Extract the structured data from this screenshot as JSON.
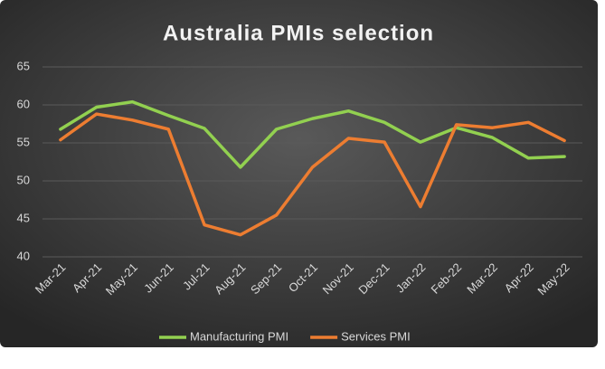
{
  "chart_data": {
    "type": "line",
    "title": "Australia PMIs selection",
    "categories": [
      "Mar-21",
      "Apr-21",
      "May-21",
      "Jun-21",
      "Jul-21",
      "Aug-21",
      "Sep-21",
      "Oct-21",
      "Nov-21",
      "Dec-21",
      "Jan-22",
      "Feb-22",
      "Mar-22",
      "Apr-22",
      "May-22"
    ],
    "series": [
      {
        "name": "Manufacturing PMI",
        "color": "#92d050",
        "values": [
          56.8,
          59.7,
          60.4,
          58.6,
          56.9,
          51.8,
          56.8,
          58.2,
          59.2,
          57.7,
          55.1,
          57.0,
          55.7,
          53.0,
          53.2
        ]
      },
      {
        "name": "Services PMI",
        "color": "#ed7d31",
        "values": [
          55.4,
          58.8,
          58.0,
          56.8,
          44.2,
          42.9,
          45.5,
          51.8,
          55.6,
          55.1,
          46.6,
          57.4,
          57.0,
          57.7,
          55.3
        ]
      }
    ],
    "ylim": [
      40,
      65
    ],
    "yticks": [
      40,
      45,
      50,
      55,
      60,
      65
    ],
    "grid": true,
    "legend": "bottom"
  }
}
